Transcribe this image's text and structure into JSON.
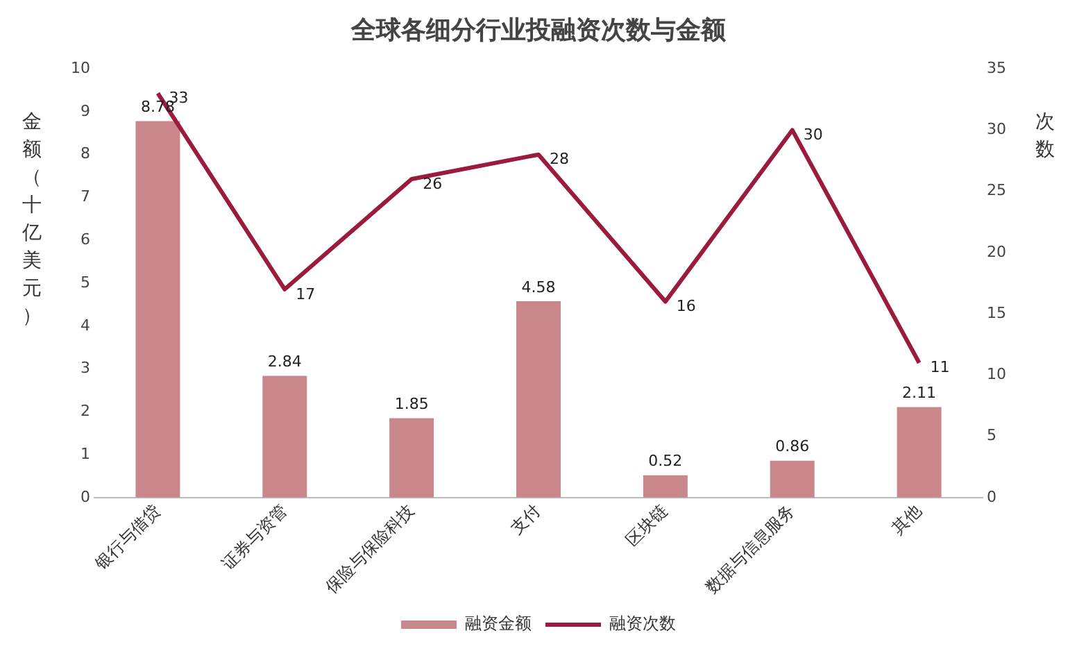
{
  "chart_data": {
    "type": "bar",
    "title": "全球各细分行业投融资次数与金额",
    "ylabel": "金额（十亿美元）",
    "y2label": "次数",
    "categories": [
      "银行与借贷",
      "证券与资管",
      "保险与保险科技",
      "支付",
      "区块链",
      "数据与信息服务",
      "其他"
    ],
    "series": [
      {
        "name": "融资金额",
        "color": "#c9878b",
        "values": [
          8.78,
          2.84,
          1.85,
          4.58,
          0.52,
          0.86,
          2.11
        ]
      },
      {
        "name": "融资次数",
        "type": "line",
        "axis": "y2",
        "color": "#9b1b3c",
        "values": [
          33,
          17,
          26,
          28,
          16,
          30,
          11
        ]
      }
    ],
    "ylim": [
      0,
      10
    ],
    "yticks": [
      0,
      1,
      2,
      3,
      4,
      5,
      6,
      7,
      8,
      9,
      10
    ],
    "y2lim": [
      0,
      35
    ],
    "y2ticks": [
      0,
      5,
      10,
      15,
      20,
      25,
      30,
      35
    ],
    "data_labels": true,
    "legend": "bottom",
    "grid": false,
    "marker": "none"
  }
}
